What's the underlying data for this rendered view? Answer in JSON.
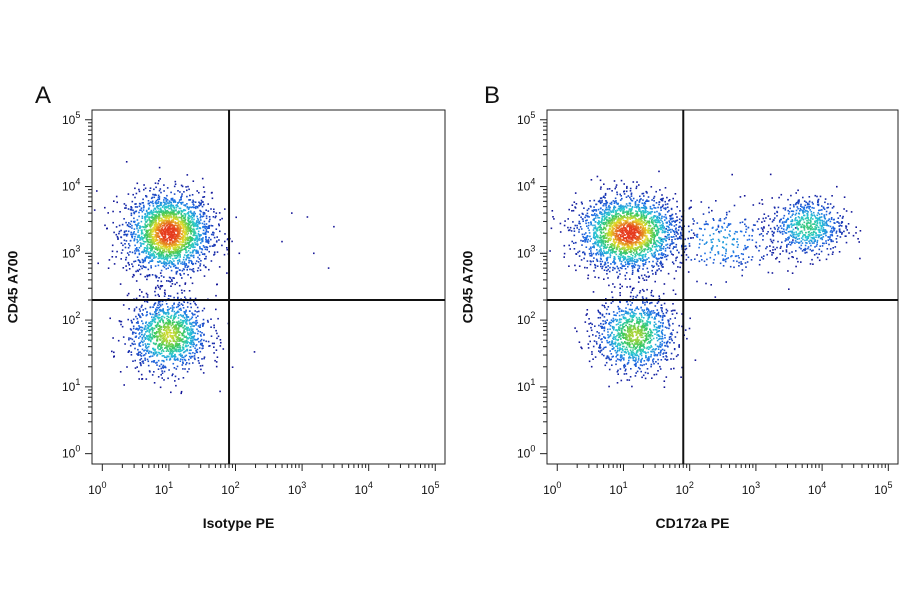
{
  "chart_data": [
    {
      "type": "scatter",
      "panel_label": "A",
      "xlabel": "Isotype PE",
      "ylabel": "CD45 A700",
      "xscale": "log",
      "yscale": "log",
      "xlim": [
        0.7,
        140000
      ],
      "ylim": [
        0.7,
        140000
      ],
      "x_ticks": [
        "10^0",
        "10^1",
        "10^2",
        "10^3",
        "10^4",
        "10^5"
      ],
      "y_ticks": [
        "10^0",
        "10^1",
        "10^2",
        "10^3",
        "10^4",
        "10^5"
      ],
      "gate_lines": {
        "x": 80,
        "y": 200
      },
      "grid": false,
      "point_colormap": "density (blue-cyan-green-yellow-red)",
      "populations": [
        {
          "name": "",
          "x_center": 10,
          "y_center": 2000,
          "x_spread_decades": 0.32,
          "y_spread_decades": 0.3,
          "relative_size": 1.0
        },
        {
          "name": "",
          "x_center": 10,
          "y_center": 60,
          "x_spread_decades": 0.3,
          "y_spread_decades": 0.28,
          "relative_size": 0.55
        }
      ],
      "sparse_events": [
        [
          700,
          4000
        ],
        [
          1500,
          1000
        ],
        [
          3000,
          2500
        ],
        [
          500,
          1500
        ],
        [
          2500,
          600
        ],
        [
          1200,
          3500
        ]
      ]
    },
    {
      "type": "scatter",
      "panel_label": "B",
      "xlabel": "CD172a PE",
      "ylabel": "CD45 A700",
      "xscale": "log",
      "yscale": "log",
      "xlim": [
        0.7,
        140000
      ],
      "ylim": [
        0.7,
        140000
      ],
      "x_ticks": [
        "10^0",
        "10^1",
        "10^2",
        "10^3",
        "10^4",
        "10^5"
      ],
      "y_ticks": [
        "10^0",
        "10^1",
        "10^2",
        "10^3",
        "10^4",
        "10^5"
      ],
      "gate_lines": {
        "x": 80,
        "y": 200
      },
      "grid": false,
      "point_colormap": "density (blue-cyan-green-yellow-red)",
      "populations": [
        {
          "name": "",
          "x_center": 12,
          "y_center": 2000,
          "x_spread_decades": 0.38,
          "y_spread_decades": 0.28,
          "relative_size": 1.0
        },
        {
          "name": "",
          "x_center": 15,
          "y_center": 60,
          "x_spread_decades": 0.3,
          "y_spread_decades": 0.28,
          "relative_size": 0.5
        },
        {
          "name": "",
          "x_center": 6000,
          "y_center": 2500,
          "x_spread_decades": 0.28,
          "y_spread_decades": 0.22,
          "relative_size": 0.3
        },
        {
          "name": "",
          "x_center": 300,
          "y_center": 1500,
          "x_spread_decades": 0.45,
          "y_spread_decades": 0.28,
          "relative_size": 0.12
        }
      ],
      "sparse_events": []
    }
  ]
}
